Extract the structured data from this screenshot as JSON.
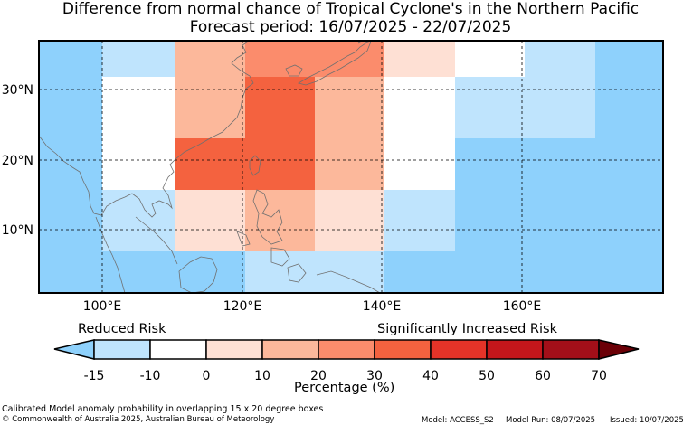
{
  "title": {
    "line1": "Difference from normal chance of Tropical Cyclone's in the Northern Pacific",
    "line2": "Forecast period: 16/07/2025 - 22/07/2025"
  },
  "map": {
    "lat_ticks": [
      "30°N",
      "20°N",
      "10°N"
    ],
    "lon_ticks": [
      "100°E",
      "120°E",
      "140°E",
      "160°E"
    ],
    "ocean_color": "#8ed1fc",
    "land_outline_color": "#777777",
    "grid_style": "dashed"
  },
  "legend": {
    "reduced_label": "Reduced Risk",
    "increased_label": "Significantly Increased Risk",
    "ticks": [
      "-15",
      "-10",
      "0",
      "10",
      "20",
      "30",
      "40",
      "50",
      "60",
      "70"
    ],
    "axis_label": "Percentage (%)",
    "colors": [
      "#8ed1fc",
      "#bfe4fd",
      "#ffffff",
      "#fee0d4",
      "#fcb89b",
      "#fb8c6c",
      "#f4623f",
      "#e53328",
      "#c4161b",
      "#a30f19",
      "#6b0007"
    ]
  },
  "footer": {
    "caption": "Calibrated Model anomaly probability in overlapping 15 x 20 degree boxes",
    "copyright": "© Commonwealth of Australia 2025, Australian Bureau of Meteorology",
    "model": "Model: ACCESS_S2",
    "model_run": "Model Run: 08/07/2025",
    "issued": "Issued: 10/07/2025"
  }
}
